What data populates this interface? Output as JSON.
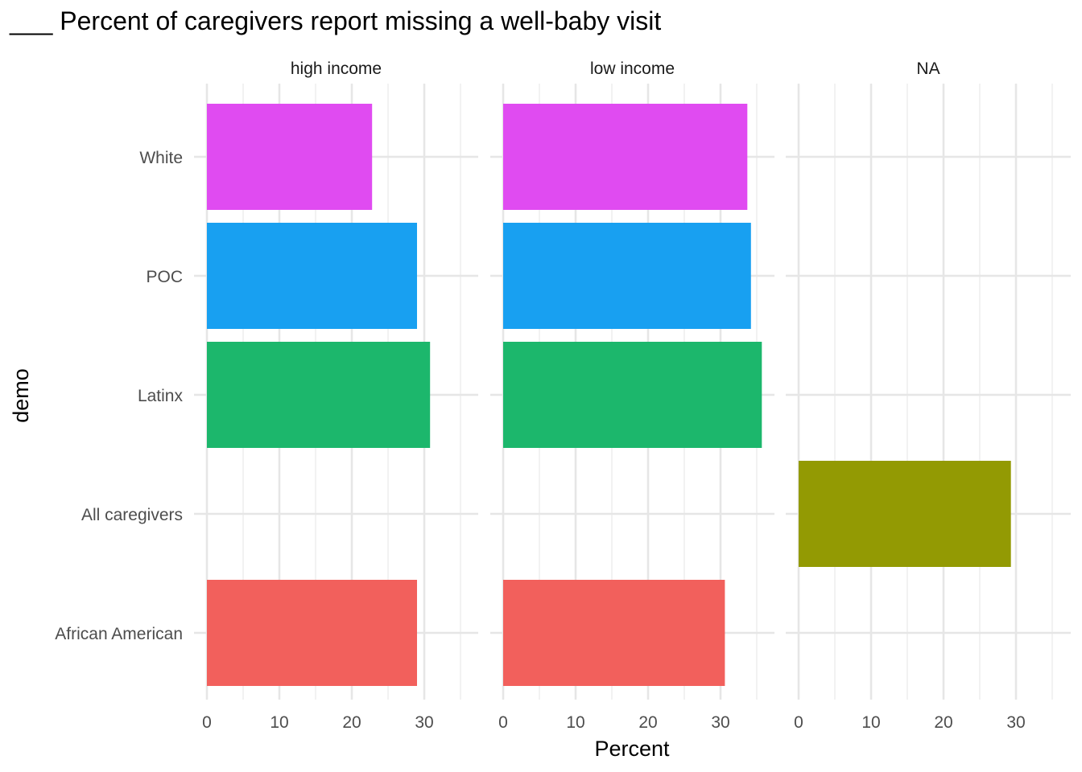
{
  "chart_data": {
    "type": "bar",
    "orientation": "horizontal",
    "title": "___ Percent of caregivers report missing a well-baby visit",
    "xlabel": "Percent",
    "ylabel": "demo",
    "xlim": [
      0,
      36
    ],
    "x_ticks": [
      0,
      10,
      20,
      30
    ],
    "categories": [
      "African American",
      "All caregivers",
      "Latinx",
      "POC",
      "White"
    ],
    "category_colors": {
      "African American": "#F2605C",
      "All caregivers": "#939A03",
      "Latinx": "#1CB76C",
      "POC": "#18A0F1",
      "White": "#E04BF1"
    },
    "grid": true,
    "legend": "none",
    "facets": [
      {
        "label": "high income",
        "values": {
          "African American": 29.0,
          "Latinx": 30.8,
          "POC": 29.0,
          "White": 22.8
        }
      },
      {
        "label": "low income",
        "values": {
          "African American": 30.6,
          "Latinx": 35.7,
          "POC": 34.2,
          "White": 33.7
        }
      },
      {
        "label": "NA",
        "values": {
          "All caregivers": 29.3
        }
      }
    ]
  }
}
